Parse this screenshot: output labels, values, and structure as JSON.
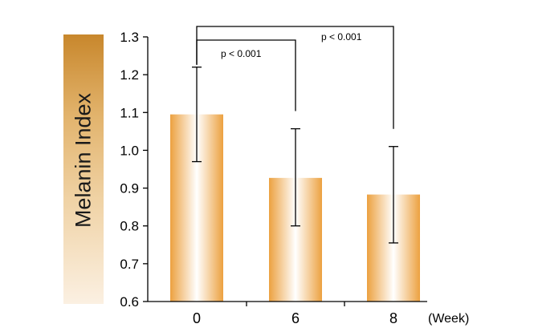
{
  "chart_data": {
    "type": "bar",
    "ylabel": "Melanin Index",
    "xlabel": "(Week)",
    "categories": [
      "0",
      "6",
      "8"
    ],
    "values": [
      1.095,
      0.927,
      0.883
    ],
    "error_upper": [
      1.22,
      1.057,
      1.01
    ],
    "error_lower": [
      0.97,
      0.8,
      0.755
    ],
    "ylim": [
      0.6,
      1.3
    ],
    "yticks": [
      "0.6",
      "0.7",
      "0.8",
      "0.9",
      "1.0",
      "1.1",
      "1.2",
      "1.3"
    ],
    "grid": false,
    "legend": "none",
    "bar_colors": {
      "edge": "#eca140",
      "center": "#ffffff"
    },
    "ylabel_gradient": [
      "#c8872c",
      "#fbf0e2"
    ],
    "annotations": [
      {
        "text": "p < 0.001",
        "from_category": "0",
        "to_category": "6"
      },
      {
        "text": "p < 0.001",
        "from_category": "0",
        "to_category": "8"
      }
    ]
  }
}
